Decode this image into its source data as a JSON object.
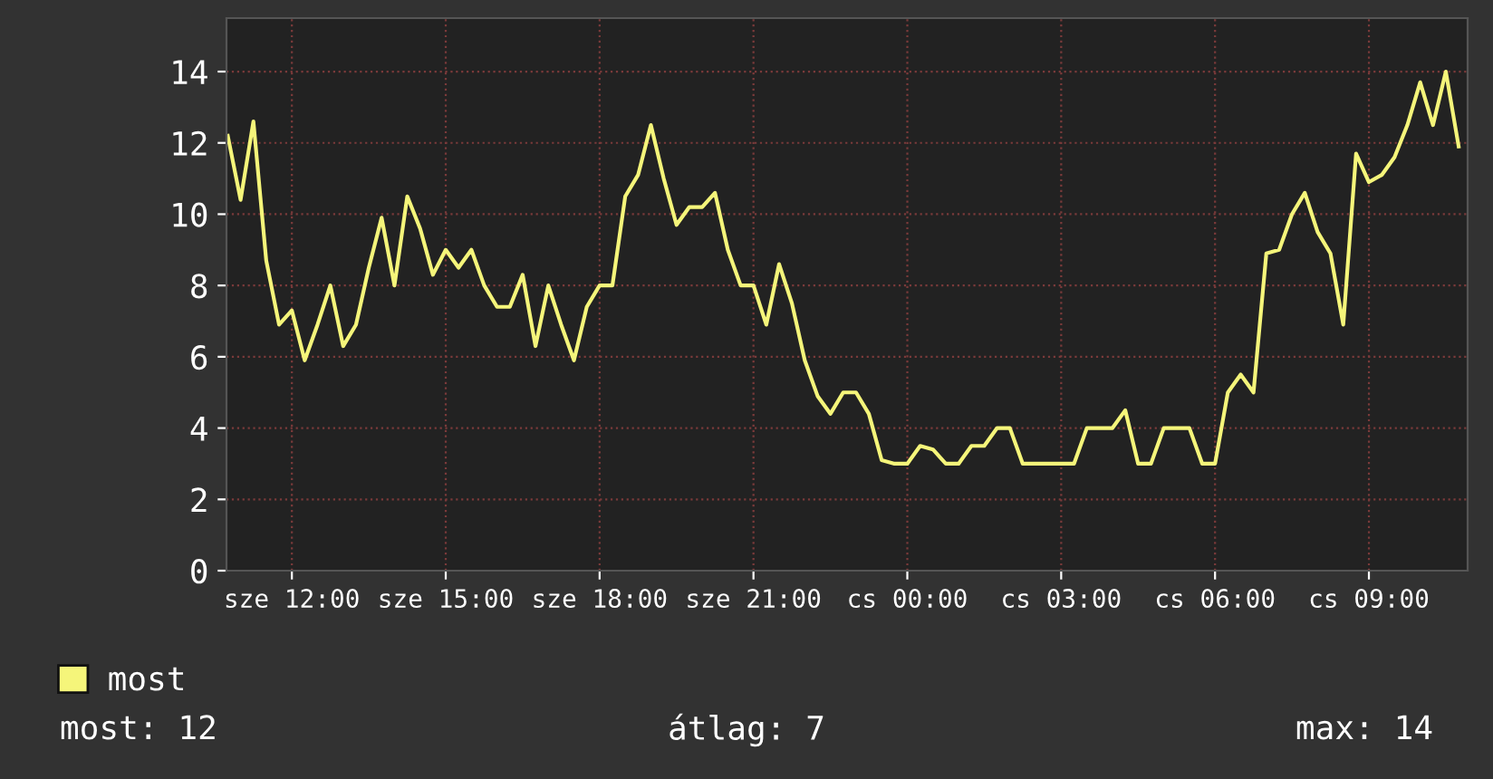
{
  "chart_data": {
    "type": "line",
    "categories": [
      null,
      null,
      null,
      null,
      null,
      "sze 12:00",
      null,
      null,
      null,
      null,
      null,
      null,
      null,
      null,
      null,
      null,
      null,
      "sze 15:00",
      null,
      null,
      null,
      null,
      null,
      null,
      null,
      null,
      null,
      null,
      null,
      "sze 18:00",
      null,
      null,
      null,
      null,
      null,
      null,
      null,
      null,
      null,
      null,
      null,
      "sze 21:00",
      null,
      null,
      null,
      null,
      null,
      null,
      null,
      null,
      null,
      null,
      null,
      "cs 00:00",
      null,
      null,
      null,
      null,
      null,
      null,
      null,
      null,
      null,
      null,
      null,
      "cs 03:00",
      null,
      null,
      null,
      null,
      null,
      null,
      null,
      null,
      null,
      null,
      null,
      "cs 06:00",
      null,
      null,
      null,
      null,
      null,
      null,
      null,
      null,
      null,
      null,
      null,
      "cs 09:00",
      null,
      null,
      null,
      null,
      null,
      null,
      null
    ],
    "series": [
      {
        "name": "most",
        "color": "#f5f57a",
        "values": [
          12.2,
          10.4,
          12.6,
          8.7,
          6.9,
          7.3,
          5.9,
          6.9,
          8.0,
          6.3,
          6.9,
          8.5,
          9.9,
          8.0,
          10.5,
          9.6,
          8.3,
          9.0,
          8.5,
          9.0,
          8.0,
          7.4,
          7.4,
          8.3,
          6.3,
          8.0,
          6.9,
          5.9,
          7.4,
          8.0,
          8.0,
          10.5,
          11.1,
          12.5,
          11.0,
          9.7,
          10.2,
          10.2,
          10.6,
          9.0,
          8.0,
          8.0,
          6.9,
          8.6,
          7.5,
          5.9,
          4.9,
          4.4,
          5.0,
          5.0,
          4.4,
          3.1,
          3.0,
          3.0,
          3.5,
          3.4,
          3.0,
          3.0,
          3.5,
          3.5,
          4.0,
          4.0,
          3.0,
          3.0,
          3.0,
          3.0,
          3.0,
          4.0,
          4.0,
          4.0,
          4.5,
          3.0,
          3.0,
          4.0,
          4.0,
          4.0,
          3.0,
          3.0,
          5.0,
          5.5,
          5.0,
          8.9,
          9.0,
          10.0,
          10.6,
          9.5,
          8.9,
          6.9,
          11.7,
          10.9,
          11.1,
          11.6,
          12.5,
          13.7,
          12.5,
          14.0,
          11.9
        ]
      }
    ],
    "ylim": [
      0,
      15.5
    ],
    "yticks": [
      0,
      2,
      4,
      6,
      8,
      10,
      12,
      14
    ],
    "grid": true,
    "legend": "bottom left",
    "annotations": [
      "most: 12",
      "átlag: 7",
      "max: 14"
    ]
  }
}
